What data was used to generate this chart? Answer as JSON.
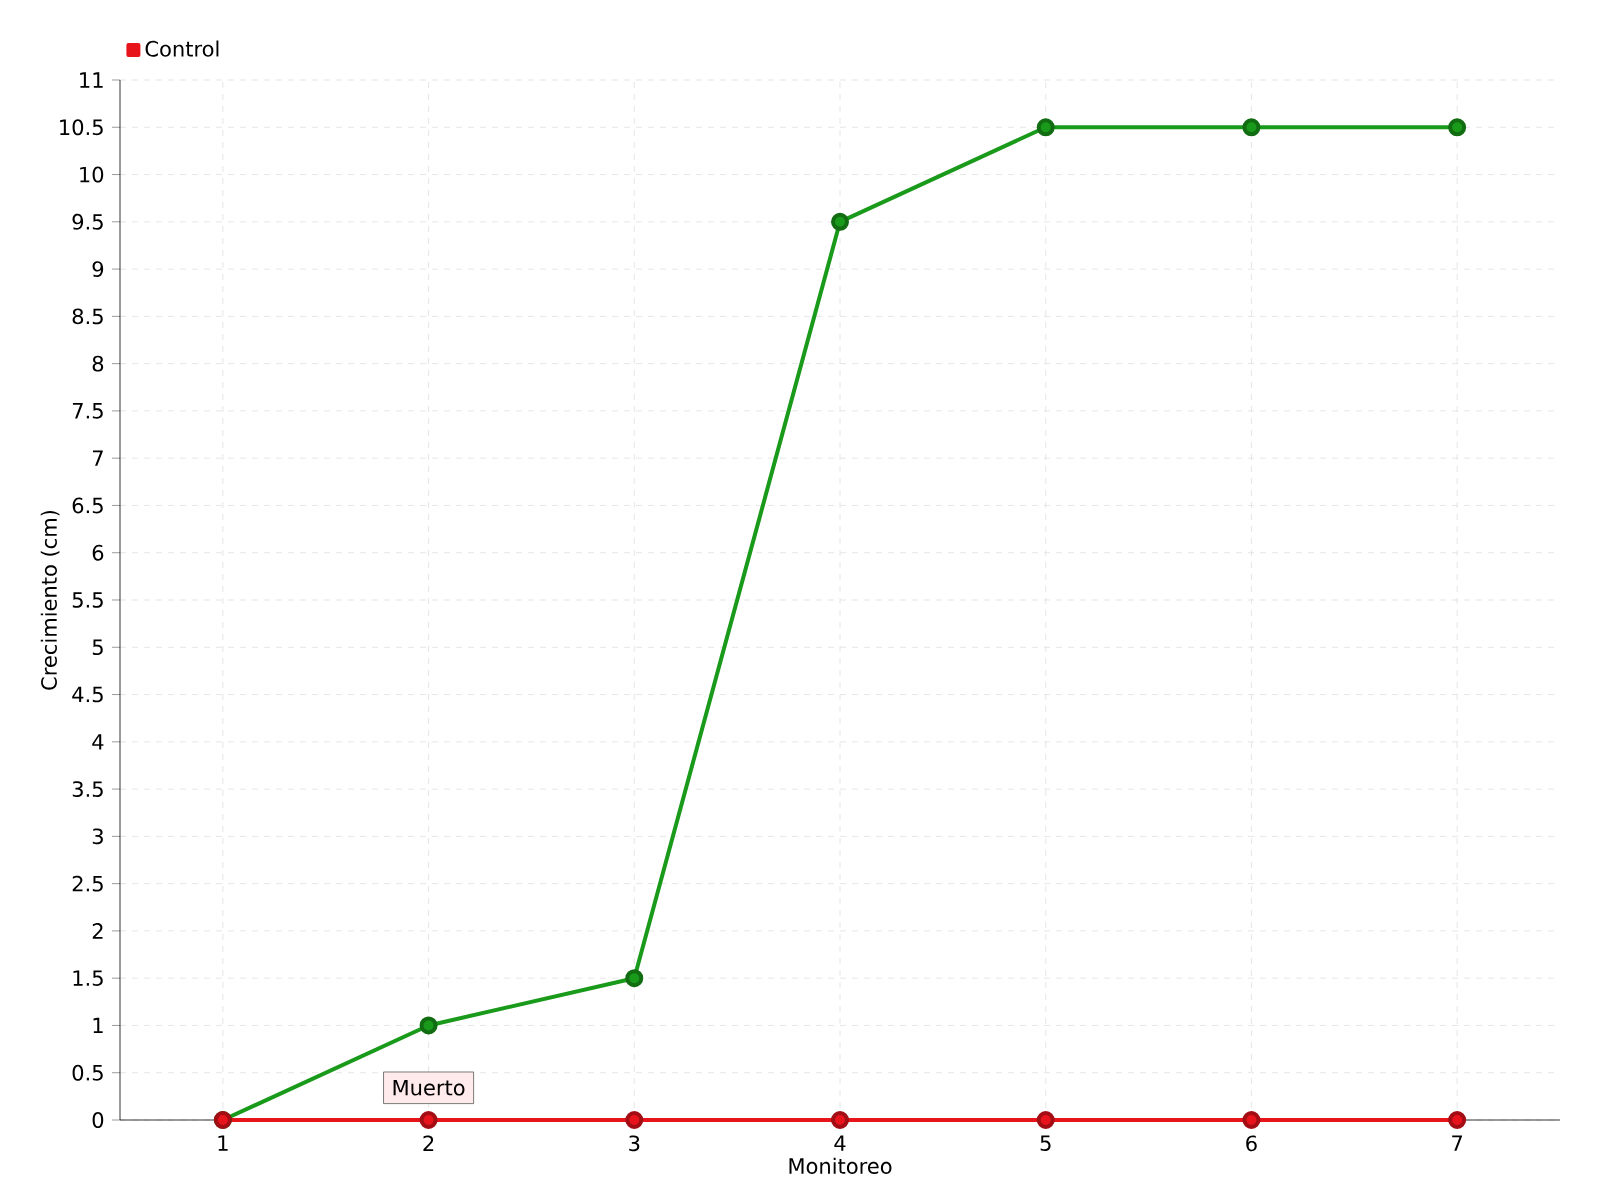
{
  "chart_data": {
    "type": "line",
    "xlabel": "Monitoreo",
    "ylabel": "Crecimiento (cm)",
    "categories": [
      "1",
      "2",
      "3",
      "4",
      "5",
      "6",
      "7"
    ],
    "series": [
      {
        "color": "#1a9a1a",
        "values": [
          0,
          1,
          1.5,
          9.5,
          10.5,
          10.5,
          10.5
        ]
      },
      {
        "name": "Control",
        "color": "#e8141c",
        "values": [
          0,
          0,
          0,
          0,
          0,
          0,
          0
        ]
      }
    ],
    "ylim": [
      0,
      11
    ],
    "yticks": [
      0,
      0.5,
      1,
      1.5,
      2,
      2.5,
      3,
      3.5,
      4,
      4.5,
      5,
      5.5,
      6,
      6.5,
      7,
      7.5,
      8,
      8.5,
      9,
      9.5,
      10,
      10.5,
      11
    ],
    "grid": true,
    "legend": "top left",
    "marker": "circle",
    "line_style": "solid",
    "annotations": [
      {
        "text": "Muerto",
        "x": "2",
        "y": 0
      }
    ]
  }
}
